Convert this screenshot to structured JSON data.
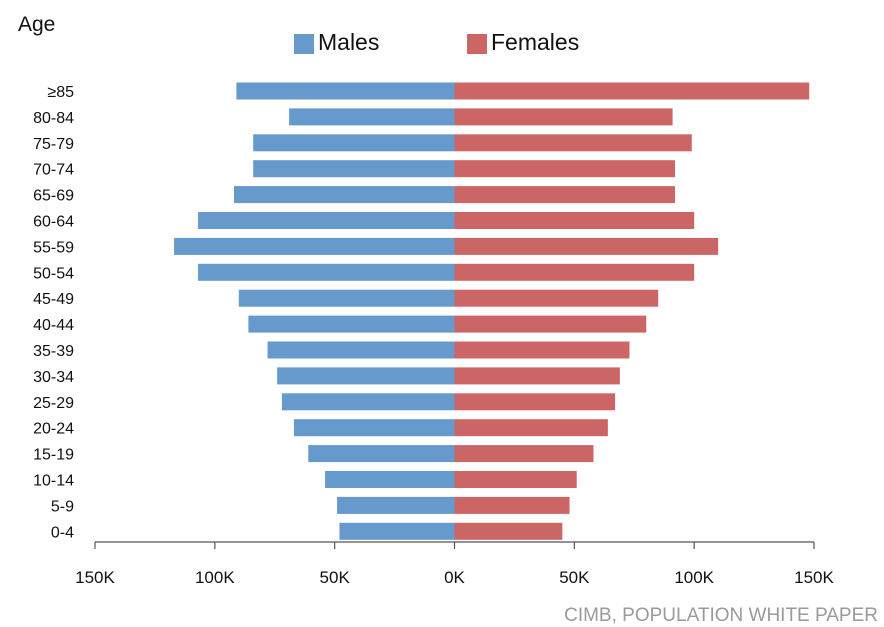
{
  "chart_data": {
    "type": "bar",
    "orientation": "horizontal",
    "ylabel": "Age",
    "categories": [
      "≥85",
      "80-84",
      "75-79",
      "70-74",
      "65-69",
      "60-64",
      "55-59",
      "50-54",
      "45-49",
      "40-44",
      "35-39",
      "30-34",
      "25-29",
      "20-24",
      "15-19",
      "10-14",
      "5-9",
      "0-4"
    ],
    "series": [
      {
        "name": "Males",
        "color": "#6699cc",
        "values": [
          91000,
          69000,
          84000,
          84000,
          92000,
          107000,
          117000,
          107000,
          90000,
          86000,
          78000,
          74000,
          72000,
          67000,
          61000,
          54000,
          49000,
          48000
        ]
      },
      {
        "name": "Females",
        "color": "#cc6666",
        "values": [
          148000,
          91000,
          99000,
          92000,
          92000,
          100000,
          110000,
          100000,
          85000,
          80000,
          73000,
          69000,
          67000,
          64000,
          58000,
          51000,
          48000,
          45000
        ]
      }
    ],
    "xticks": [
      "150K",
      "100K",
      "50K",
      "0K",
      "50K",
      "100K",
      "150K"
    ],
    "xlim": [
      -150000,
      150000
    ],
    "legend_position": "top",
    "grid": false,
    "source": "CIMB, POPULATION WHITE PAPER"
  }
}
